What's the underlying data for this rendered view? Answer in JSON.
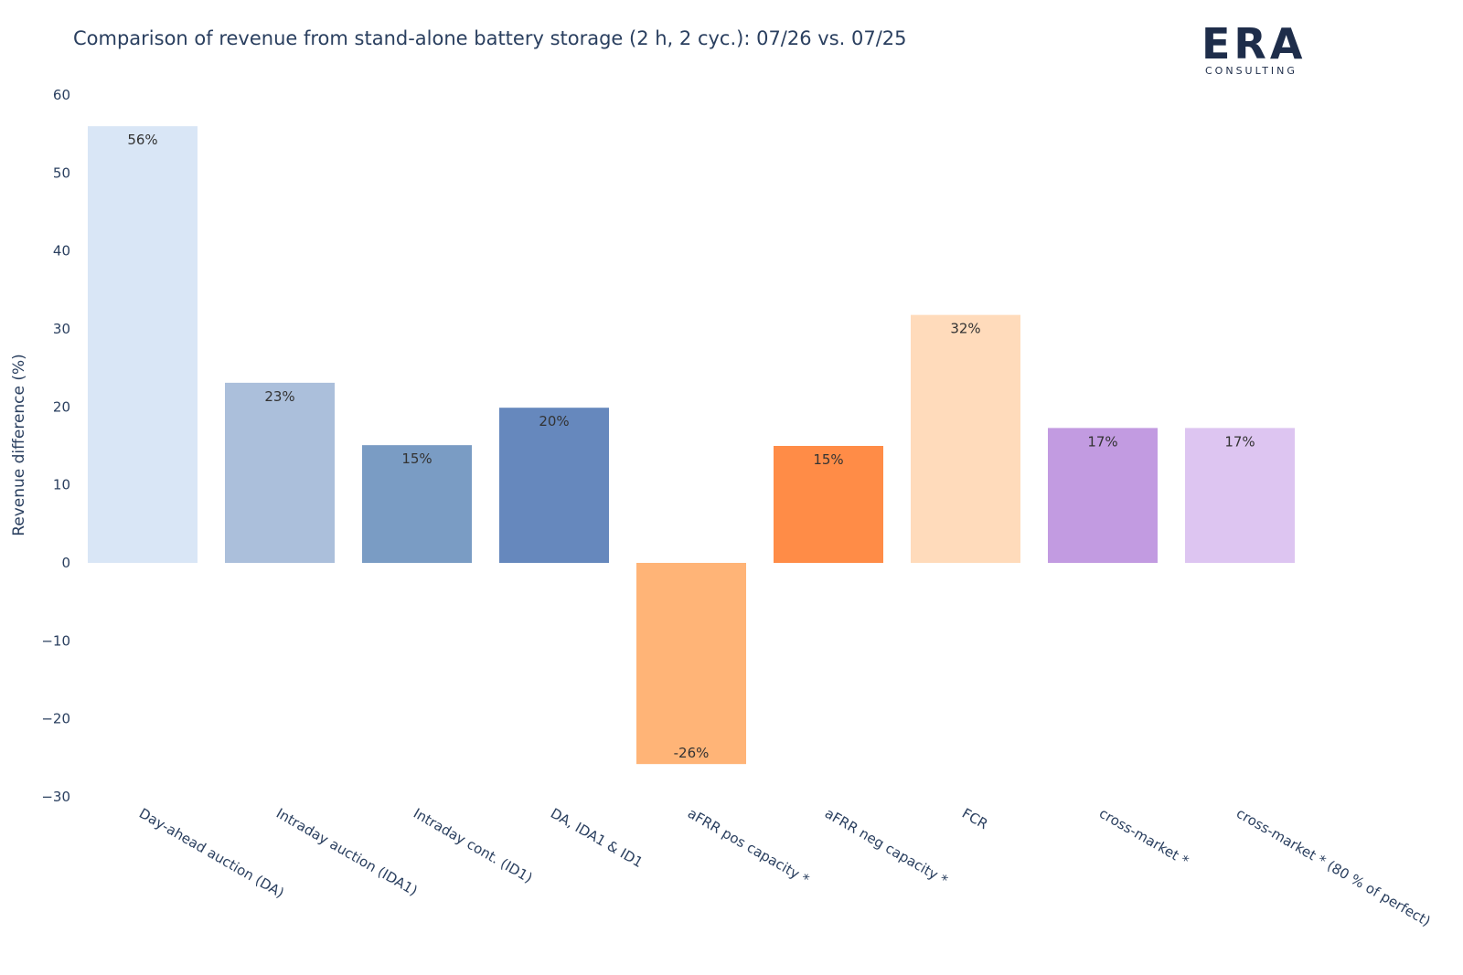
{
  "title": "Comparison of revenue from stand-alone battery storage (2 h, 2 cyc.): 07/26 vs. 07/25",
  "logo": {
    "main": "ERA",
    "sub": "CONSULTING"
  },
  "chart_data": {
    "type": "bar",
    "title": "Comparison of revenue from stand-alone battery storage (2 h, 2 cyc.): 07/26 vs. 07/25",
    "xlabel": "",
    "ylabel": "Revenue difference (%)",
    "ylim": [
      -30,
      60
    ],
    "yticks": [
      60,
      50,
      40,
      30,
      20,
      10,
      0,
      -10,
      -20,
      -30
    ],
    "ytick_labels": [
      "60",
      "50",
      "40",
      "30",
      "20",
      "10",
      "0",
      "−10",
      "−20",
      "−30"
    ],
    "grid": false,
    "categories": [
      "Day-ahead auction (DA)",
      "Intraday auction (IDA1)",
      "Intraday cont. (ID1)",
      "DA, IDA1 & ID1",
      "aFRR pos capacity *",
      "aFRR neg capacity *",
      "FCR",
      "cross-market *",
      "cross-market * (80 % of perfect)"
    ],
    "values": [
      56,
      23.1,
      15.1,
      19.9,
      -25.8,
      15,
      31.8,
      17.3,
      17.3
    ],
    "data_labels": [
      "56%",
      "23%",
      "15%",
      "20%",
      "-26%",
      "15%",
      "32%",
      "17%",
      "17%"
    ],
    "colors": [
      "#d9e6f6",
      "#abbfdb",
      "#7a9cc4",
      "#6688bd",
      "#ffb477",
      "#ff8c47",
      "#ffdbbb",
      "#c29be1",
      "#ddc5f1"
    ]
  }
}
